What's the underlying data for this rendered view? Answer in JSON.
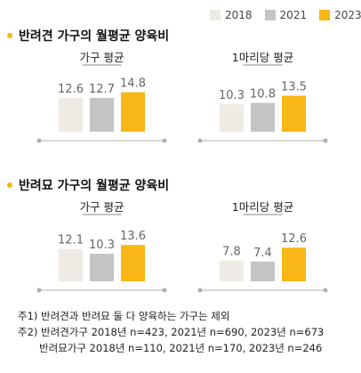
{
  "legend": [
    {
      "label": "2018",
      "color": "#EEEAE4"
    },
    {
      "label": "2021",
      "color": "#C4C4C4"
    },
    {
      "label": "2023",
      "color": "#F8B716"
    }
  ],
  "sections": [
    {
      "title": "반려견 가구의 월평균 양육비"
    },
    {
      "title": "반려묘 가구의 월평균 양육비"
    }
  ],
  "chart_data": [
    {
      "type": "bar",
      "title": "가구 평균",
      "categories": [
        "2018",
        "2021",
        "2023"
      ],
      "values": [
        12.6,
        12.7,
        14.8
      ],
      "value_labels": [
        "12.6",
        "12.7",
        "14.8"
      ]
    },
    {
      "type": "bar",
      "title": "1마리당 평균",
      "categories": [
        "2018",
        "2021",
        "2023"
      ],
      "values": [
        10.3,
        10.8,
        13.5
      ],
      "value_labels": [
        "10.3",
        "10.8",
        "13.5"
      ]
    },
    {
      "type": "bar",
      "title": "가구 평균",
      "categories": [
        "2018",
        "2021",
        "2023"
      ],
      "values": [
        12.1,
        10.3,
        13.6
      ],
      "value_labels": [
        "12.1",
        "10.3",
        "13.6"
      ]
    },
    {
      "type": "bar",
      "title": "1마리당 평균",
      "categories": [
        "2018",
        "2021",
        "2023"
      ],
      "values": [
        7.8,
        7.4,
        12.6
      ],
      "value_labels": [
        "7.8",
        "7.4",
        "12.6"
      ]
    }
  ],
  "notes": [
    "주1) 반려견과 반려묘 둘 다 양육하는 가구는 제외",
    "주2) 반려견가구 2018년 n=423, 2021년 n=690, 2023년 n=673",
    "반려묘가구 2018년 n=110, 2021년 n=170, 2023년 n=246"
  ]
}
